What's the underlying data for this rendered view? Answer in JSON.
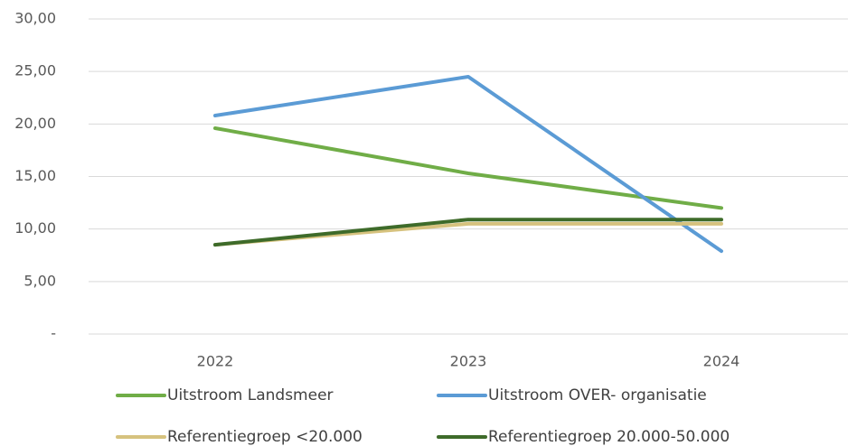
{
  "chart_data": {
    "type": "line",
    "categories": [
      "2022",
      "2023",
      "2024"
    ],
    "series": [
      {
        "name": "Uitstroom Landsmeer",
        "color": "#70ad47",
        "values": [
          19.6,
          15.3,
          12.0
        ]
      },
      {
        "name": "Uitstroom OVER- organisatie",
        "color": "#5b9bd5",
        "values": [
          20.8,
          24.5,
          7.9
        ]
      },
      {
        "name": "Referentiegroep <20.000",
        "color": "#d6c27e",
        "values": [
          8.5,
          10.5,
          10.5
        ]
      },
      {
        "name": "Referentiegroep 20.000-50.000",
        "color": "#3e6b2a",
        "values": [
          8.5,
          10.9,
          10.9
        ]
      }
    ],
    "ylim": [
      0,
      30
    ],
    "yticks": [
      {
        "value": 0,
        "label": "-"
      },
      {
        "value": 5,
        "label": "5,00"
      },
      {
        "value": 10,
        "label": "10,00"
      },
      {
        "value": 15,
        "label": "15,00"
      },
      {
        "value": 20,
        "label": "20,00"
      },
      {
        "value": 25,
        "label": "25,00"
      },
      {
        "value": 30,
        "label": "30,00"
      }
    ],
    "grid": true
  }
}
